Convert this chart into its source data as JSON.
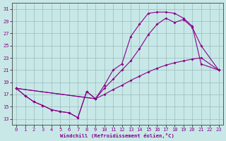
{
  "xlabel": "Windchill (Refroidissement éolien,°C)",
  "xlim": [
    -0.5,
    23.5
  ],
  "ylim": [
    12.0,
    32.0
  ],
  "yticks": [
    13,
    15,
    17,
    19,
    21,
    23,
    25,
    27,
    29,
    31
  ],
  "xticks": [
    0,
    1,
    2,
    3,
    4,
    5,
    6,
    7,
    8,
    9,
    10,
    11,
    12,
    13,
    14,
    15,
    16,
    17,
    18,
    19,
    20,
    21,
    22,
    23
  ],
  "bg_color": "#c8e8e8",
  "grid_color": "#99bbbb",
  "line_color": "#880088",
  "curve_A_x": [
    0,
    1,
    2,
    3,
    4,
    5,
    6,
    7,
    8,
    9
  ],
  "curve_A_y": [
    18.0,
    16.8,
    15.8,
    15.2,
    14.5,
    14.2,
    14.0,
    13.2,
    17.5,
    16.3
  ],
  "curve_B_x": [
    0,
    1,
    2,
    3,
    4,
    5,
    6,
    7,
    8,
    9,
    10,
    11,
    12,
    13,
    14,
    15,
    16,
    17,
    18,
    19,
    20,
    21,
    23
  ],
  "curve_B_y": [
    18.0,
    16.8,
    15.8,
    15.2,
    14.5,
    14.2,
    14.0,
    13.2,
    17.5,
    16.3,
    18.5,
    21.0,
    22.0,
    26.5,
    28.5,
    30.3,
    30.5,
    30.5,
    30.3,
    29.5,
    28.2,
    22.0,
    21.0
  ],
  "curve_C_x": [
    0,
    9,
    10,
    11,
    12,
    13,
    14,
    15,
    16,
    17,
    18,
    19,
    20,
    21,
    23
  ],
  "curve_C_y": [
    18.0,
    16.3,
    17.0,
    17.8,
    18.5,
    19.3,
    20.0,
    20.7,
    21.3,
    21.8,
    22.2,
    22.5,
    22.8,
    23.0,
    21.0
  ],
  "curve_D_x": [
    0,
    9,
    10,
    11,
    12,
    13,
    14,
    15,
    16,
    17,
    18,
    19,
    20,
    21,
    23
  ],
  "curve_D_y": [
    18.0,
    16.3,
    18.0,
    19.5,
    21.0,
    22.5,
    24.5,
    26.8,
    28.5,
    29.5,
    28.8,
    29.3,
    28.0,
    25.0,
    21.0
  ]
}
